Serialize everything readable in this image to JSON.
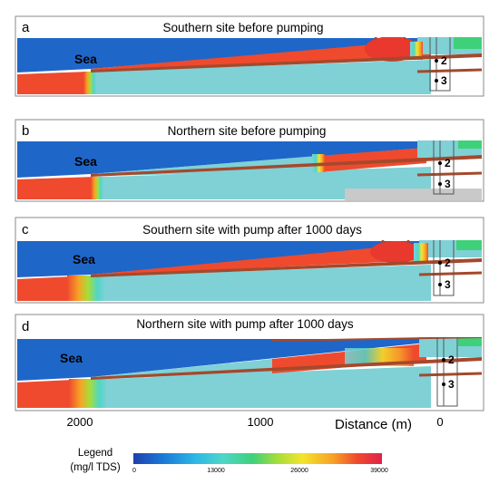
{
  "panels": [
    {
      "letter": "a",
      "title": "Southern site before pumping",
      "sea_label": "Sea",
      "wells": [
        "2",
        "3"
      ]
    },
    {
      "letter": "b",
      "title": "Northern site before pumping",
      "sea_label": "Sea",
      "wells": [
        "2",
        "3"
      ]
    },
    {
      "letter": "c",
      "title": "Southern site with pump after 1000 days",
      "sea_label": "Sea",
      "wells": [
        "2",
        "3"
      ]
    },
    {
      "letter": "d",
      "title": "Northern site with pump after 1000 days",
      "sea_label": "Sea",
      "wells": [
        "2",
        "3"
      ]
    }
  ],
  "distance_axis": {
    "ticks": [
      "2000",
      "1000",
      "0"
    ],
    "title": "Distance (m)"
  },
  "legend": {
    "title_line1": "Legend",
    "title_line2": "(mg/l TDS)",
    "ticks": [
      "0",
      "13000",
      "26000",
      "39000"
    ]
  },
  "colors": {
    "sea": "#1f66c9",
    "saline": "#ef4a2e",
    "aquifer": "#7fd1d6",
    "clay_layer": "#a4492c",
    "ramp": [
      "#1e3fae",
      "#1b7ad6",
      "#2db7e6",
      "#4fd6c8",
      "#3fd17a",
      "#a6dd3a",
      "#f3e52c",
      "#f7a326",
      "#ef4a2e",
      "#e0214b"
    ]
  }
}
